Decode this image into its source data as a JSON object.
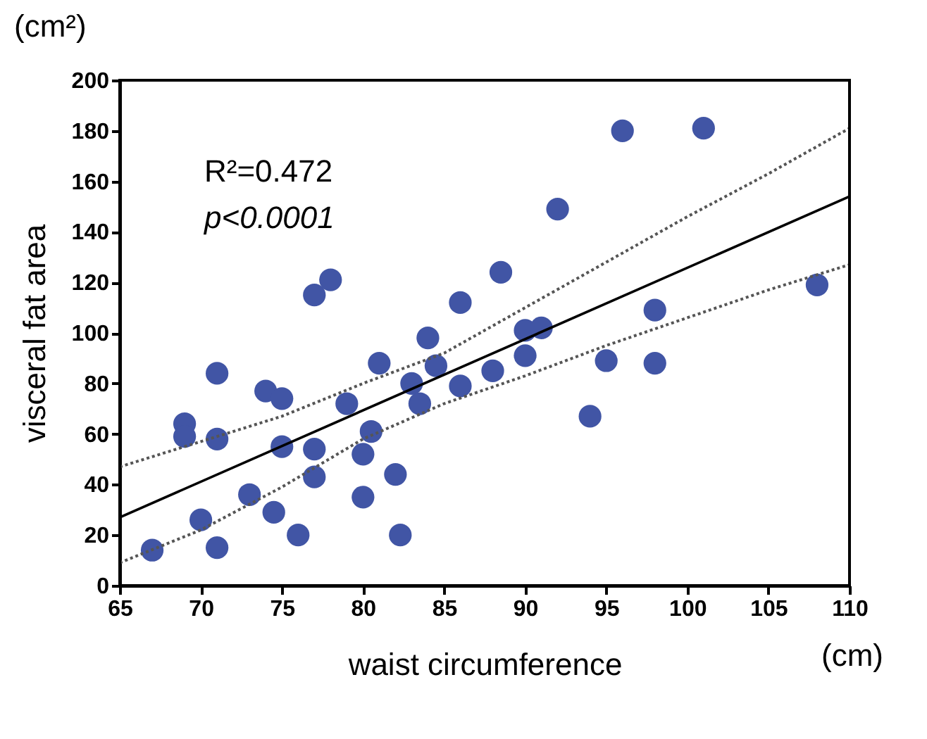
{
  "chart_data": {
    "type": "scatter",
    "xlabel": "waist circumference",
    "ylabel": "visceral fat area",
    "annotations": [
      "R²=0.472",
      "p<0.0001",
      "(cm²)",
      "(cm)"
    ],
    "xlim": [
      65,
      110
    ],
    "xticks": [
      65,
      70,
      75,
      80,
      85,
      90,
      95,
      100,
      105,
      110
    ],
    "ylim": [
      0,
      200
    ],
    "yticks": [
      0,
      20,
      40,
      60,
      80,
      100,
      120,
      140,
      160,
      180,
      200
    ],
    "grid": false,
    "marker": "circle",
    "series": [
      {
        "color": "#4155a5",
        "x": [
          67,
          69,
          69,
          70,
          71,
          71,
          71,
          73,
          74,
          74.5,
          75,
          75,
          76,
          77,
          77,
          77,
          78,
          79,
          80,
          80,
          80.5,
          81,
          82,
          82.3,
          83,
          83.5,
          84,
          84.5,
          86,
          86,
          88,
          88.5,
          90,
          90,
          91,
          92,
          94,
          95,
          96,
          98,
          98,
          101,
          108
        ],
        "values": [
          14,
          64,
          59,
          26,
          84,
          58,
          15,
          36,
          77,
          29,
          74,
          55,
          20,
          115,
          54,
          43,
          121,
          72,
          52,
          35,
          61,
          88,
          44,
          20,
          80,
          72,
          98,
          87,
          112,
          79,
          85,
          124,
          101,
          91,
          102,
          149,
          67,
          89,
          180,
          109,
          88,
          181,
          119
        ]
      },
      {
        "type": "line",
        "marker": "none",
        "line_style": "solid",
        "color": "#000000",
        "x": [
          65,
          110
        ],
        "values": [
          27,
          154
        ]
      },
      {
        "type": "line",
        "marker": "none",
        "line_style": "dotted",
        "color": "#555555",
        "x": [
          65,
          70,
          75,
          80,
          85,
          90,
          95,
          100,
          105,
          110
        ],
        "values": [
          47,
          57,
          67,
          80,
          92,
          110,
          128,
          146,
          163,
          181
        ]
      },
      {
        "type": "line",
        "marker": "none",
        "line_style": "dotted",
        "color": "#555555",
        "x": [
          65,
          70,
          75,
          80,
          85,
          90,
          95,
          100,
          105,
          110
        ],
        "values": [
          9,
          22,
          39,
          58,
          72,
          83,
          95,
          106,
          117,
          127
        ]
      }
    ]
  }
}
